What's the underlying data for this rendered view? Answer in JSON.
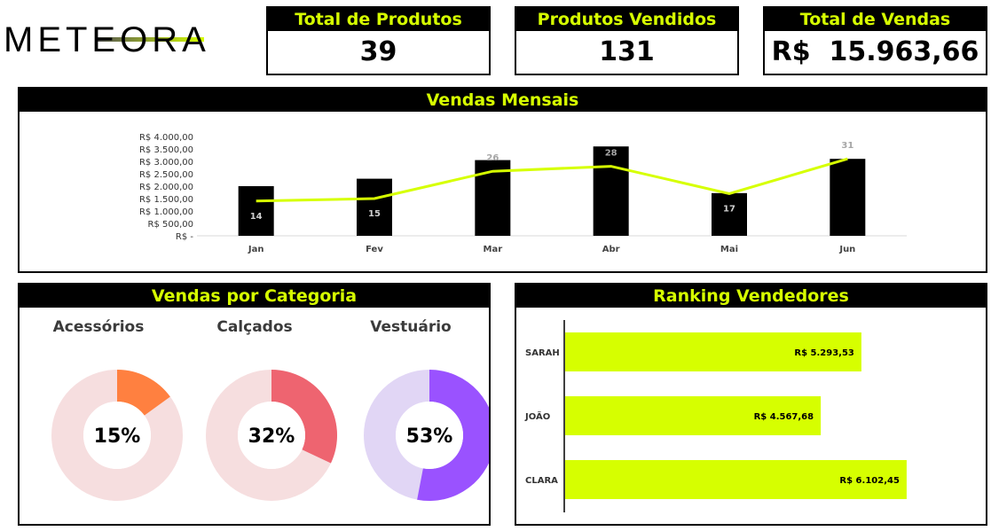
{
  "brand": {
    "name": "METEORA"
  },
  "kpis": [
    {
      "title": "Total de Produtos",
      "value": "39"
    },
    {
      "title": "Produtos Vendidos",
      "value": "131"
    },
    {
      "title": "Total de Vendas",
      "value": "R$  15.963,66"
    }
  ],
  "colors": {
    "accent": "#d6ff00",
    "header_bg": "#000000",
    "acessorios": "#ff8040",
    "calcados": "#ee6470",
    "vestuario": "#9a52ff"
  },
  "sections": {
    "monthly_title": "Vendas Mensais",
    "category_title": "Vendas por Categoria",
    "ranking_title": "Ranking Vendedores"
  },
  "chart_data": [
    {
      "type": "bar",
      "title": "Vendas Mensais",
      "categories": [
        "Jan",
        "Fev",
        "Mar",
        "Abr",
        "Mai",
        "Jun"
      ],
      "y_ticks": [
        "R$ 4.000,00",
        "R$ 3.500,00",
        "R$ 3.000,00",
        "R$ 2.500,00",
        "R$ 2.000,00",
        "R$ 1.500,00",
        "R$ 1.000,00",
        "R$ 500,00",
        "R$ -"
      ],
      "ylim": [
        0,
        4000
      ],
      "series": [
        {
          "type": "bar",
          "values": [
            2000,
            2300,
            3050,
            3600,
            1720,
            3100
          ],
          "color": "#000000"
        },
        {
          "type": "line",
          "values": [
            14,
            15,
            26,
            28,
            17,
            31
          ],
          "labels": [
            "14",
            "15",
            "26",
            "28",
            "17",
            "31"
          ],
          "color": "#d6ff00",
          "ylim": [
            0,
            40
          ]
        }
      ],
      "grid": false
    },
    {
      "type": "pie",
      "title": "Vendas por Categoria",
      "slices": [
        {
          "label": "Acessórios",
          "value": 15,
          "value_label": "15%",
          "color": "#ff8040",
          "track": "#f6dedf"
        },
        {
          "label": "Calçados",
          "value": 32,
          "value_label": "32%",
          "color": "#ee6470",
          "track": "#f6dedf"
        },
        {
          "label": "Vestuário",
          "value": 53,
          "value_label": "53%",
          "color": "#9a52ff",
          "track": "#e1d6f5"
        }
      ]
    },
    {
      "type": "bar",
      "orientation": "horizontal",
      "title": "Ranking Vendedores",
      "categories": [
        "SARAH",
        "JOÃO",
        "CLARA"
      ],
      "values": [
        5293.53,
        4567.68,
        6102.45
      ],
      "labels": [
        "R$ 5.293,53",
        "R$ 4.567,68",
        "R$ 6.102,45"
      ],
      "xlim": [
        0,
        6500
      ],
      "color": "#d6ff00"
    }
  ]
}
